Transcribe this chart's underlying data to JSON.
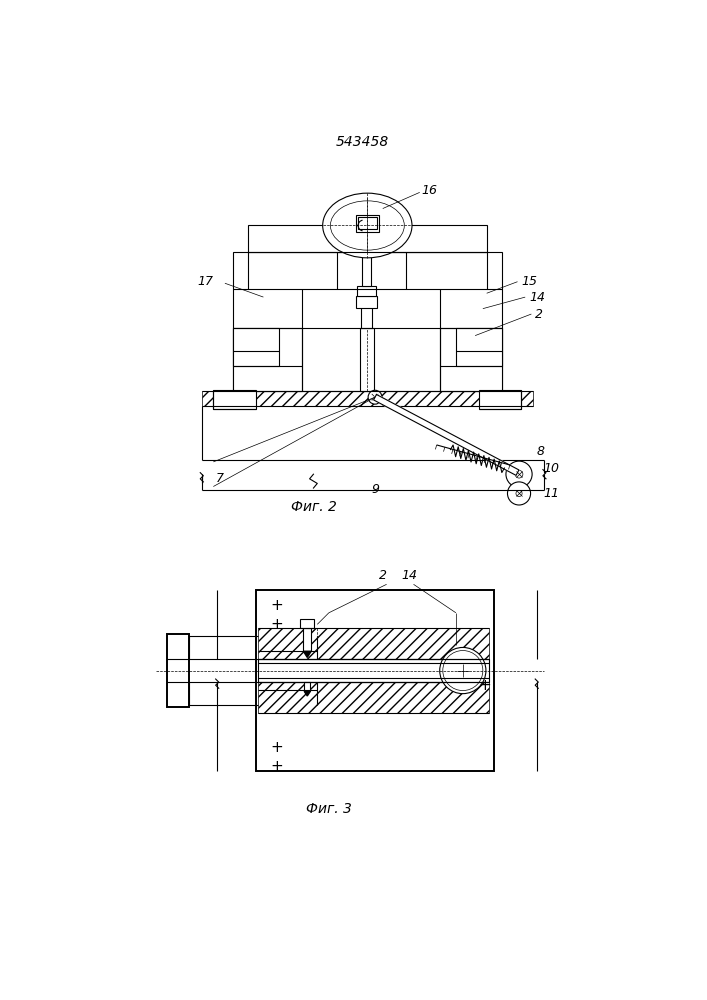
{
  "title": "543458",
  "fig2_label": "Фиг. 2",
  "fig3_label": "Фиг. 3",
  "bg_color": "#ffffff",
  "lc": "#000000",
  "lw": 0.8,
  "lw2": 1.4,
  "lw_t": 0.5
}
